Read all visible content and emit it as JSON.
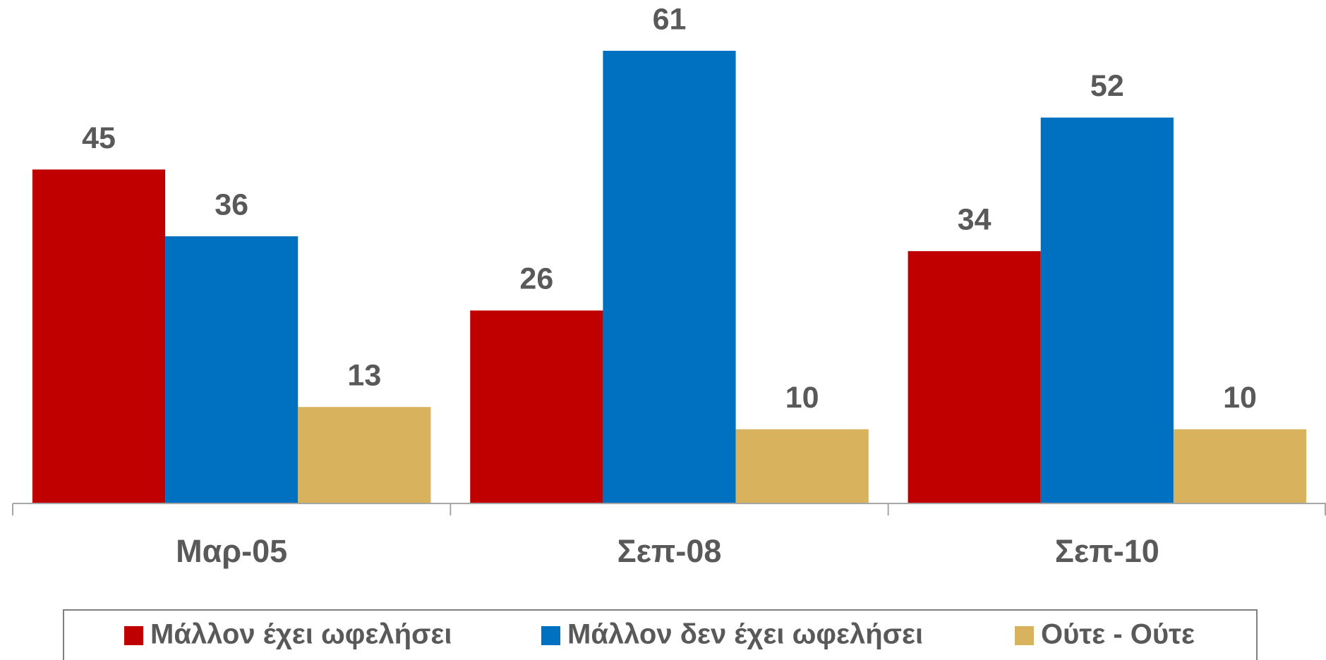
{
  "chart_data": {
    "type": "bar",
    "categories": [
      "Μαρ-05",
      "Σεπ-08",
      "Σεπ-10"
    ],
    "series": [
      {
        "name": "Μάλλον έχει ωφελήσει",
        "color": "#c00000",
        "values": [
          45,
          26,
          34
        ]
      },
      {
        "name": "Μάλλον δεν έχει ωφελήσει",
        "color": "#0070c0",
        "values": [
          36,
          61,
          52
        ]
      },
      {
        "name": "Ούτε - Ούτε",
        "color": "#d9b25e",
        "values": [
          13,
          10,
          10
        ]
      }
    ],
    "legend": "bottom"
  }
}
